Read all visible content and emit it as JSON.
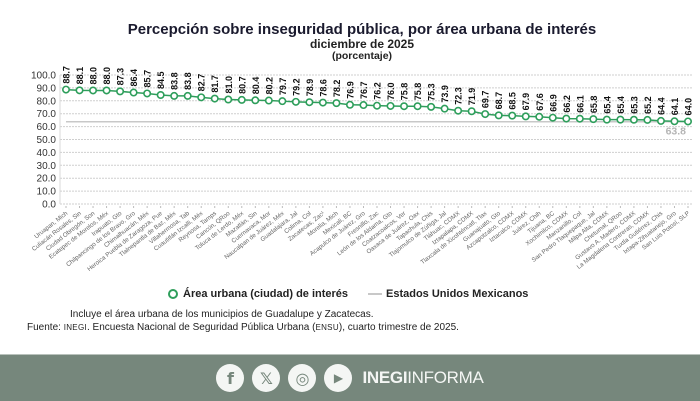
{
  "chart_data": {
    "type": "line",
    "title": "Percepción sobre inseguridad pública, por área urbana de interés",
    "subtitle": "diciembre de 2025",
    "unit_note": "(porcentaje)",
    "xlabel": "",
    "ylabel": "",
    "ylim": [
      0,
      100
    ],
    "yticks": [
      "0.0",
      "10.0",
      "20.0",
      "30.0",
      "40.0",
      "50.0",
      "60.0",
      "70.0",
      "80.0",
      "90.0",
      "100.0"
    ],
    "grid": true,
    "legend_position": "bottom",
    "categories": [
      "Uruapan, Mich",
      "Culiacán Rosales, Sin",
      "Ciudad Obregón, Son",
      "Ecatepec de Morelos, Méx",
      "Irapuato, Gto",
      "Chilpancingo de los Bravo, Gro",
      "Chimalhuacán, Méx",
      "Heroica Puebla de Zaragoza, Pue",
      "Tlalnepantla de Baz, Méx",
      "Villahermosa, Tab",
      "Cuautitlán Izcalli, Méx",
      "Reynosa, Tamps",
      "Cancún, QRoo",
      "Toluca de Lerdo, Méx",
      "Mazatlán, Sin",
      "Cuernavaca, Mor",
      "Naucalpan de Juárez, Méx",
      "Guadalajara, Jal",
      "Colima, Col",
      "Zacatecas, Zac¹",
      "Morelia, Mich",
      "Mexicali, BC",
      "Acapulco de Juárez, Gro",
      "Fresnillo, Zac",
      "León de los Aldama, Gto",
      "Coatzacoalcos, Ver",
      "Oaxaca de Juárez, Oax",
      "Tapachula, Chis",
      "Tlajomulco de Zúñiga, Jal",
      "Tláhuac, CDMX",
      "Iztapalapa, CDMX",
      "Tlaxcala de Xicohténcatl, Tlax",
      "Guanajuato, Gto",
      "Azcapotzalco, CDMX",
      "Iztacalco, CDMX",
      "Juárez, Chih",
      "Tijuana, BC",
      "Xochimilco, CDMX",
      "Manzanillo, Col",
      "San Pedro Tlaquepaque, Jal",
      "Milpa Alta, CDMX",
      "Chetumal, QRoo",
      "Gustavo A. Madero, CDMX",
      "La Magdalena Contreras, CDMX",
      "Tuxtla Gutiérrez, Chis",
      "Ixtapa-Zihuatanejo, Gro",
      "San Luis Potosí, SLP"
    ],
    "series": [
      {
        "name": "Área urbana (ciudad) de interés",
        "color": "#2e9e5b",
        "marker": "hollow-circle",
        "values": [
          88.7,
          88.1,
          88.0,
          88.0,
          87.3,
          86.4,
          85.7,
          84.5,
          83.8,
          83.8,
          82.7,
          81.7,
          81.0,
          80.7,
          80.4,
          80.2,
          79.7,
          79.2,
          78.9,
          78.6,
          78.2,
          76.9,
          76.7,
          76.2,
          76.0,
          75.8,
          75.8,
          75.3,
          73.9,
          72.3,
          71.9,
          69.7,
          68.7,
          68.5,
          67.9,
          67.6,
          66.9,
          66.2,
          66.1,
          65.8,
          65.4,
          65.4,
          65.3,
          65.2,
          64.4,
          64.1,
          64.0
        ],
        "labels": [
          "88.7",
          "88.1",
          "88.0",
          "88.0",
          "87.3",
          "86.4",
          "85.7",
          "84.5",
          "83.8",
          "83.8",
          "82.7",
          "81.7",
          "81.0",
          "80.7",
          "80.4",
          "80.2",
          "79.7",
          "79.2",
          "78.9",
          "78.6",
          "78.2",
          "76.9",
          "76.7",
          "76.2",
          "76.0",
          "75.8",
          "75.8",
          "75.3",
          "73.9",
          "72.3",
          "71.9",
          "69.7",
          "68.7",
          "68.5",
          "67.9",
          "67.6",
          "66.9",
          "66.2",
          "66.1",
          "65.8",
          "65.4",
          "65.4",
          "65.3",
          "65.2",
          "64.4",
          "64.1",
          "64.0"
        ]
      },
      {
        "name": "Estados Unidos Mexicanos",
        "color": "#c8c8c8",
        "marker": "none",
        "constant": 63.8,
        "label": "63.8"
      }
    ]
  },
  "legend": {
    "series1": "Área urbana (ciudad) de interés",
    "series2": "Estados Unidos Mexicanos"
  },
  "notes": {
    "note1": "Incluye el área urbana de los municipios de Guadalupe y Zacatecas.",
    "source_prefix": "Fuente: ",
    "source_org": "INEGI",
    "source_mid": ". Encuesta Nacional de Seguridad Pública Urbana (",
    "source_abbr": "ENSU",
    "source_end": "), cuarto trimestre de 2025."
  },
  "footer": {
    "social": [
      {
        "name": "facebook",
        "glyph": "f"
      },
      {
        "name": "x",
        "glyph": "𝕏"
      },
      {
        "name": "instagram",
        "glyph": "◎"
      },
      {
        "name": "youtube",
        "glyph": "▶"
      }
    ],
    "brand_bold": "INEGI",
    "brand_thin": "INFORMA"
  }
}
